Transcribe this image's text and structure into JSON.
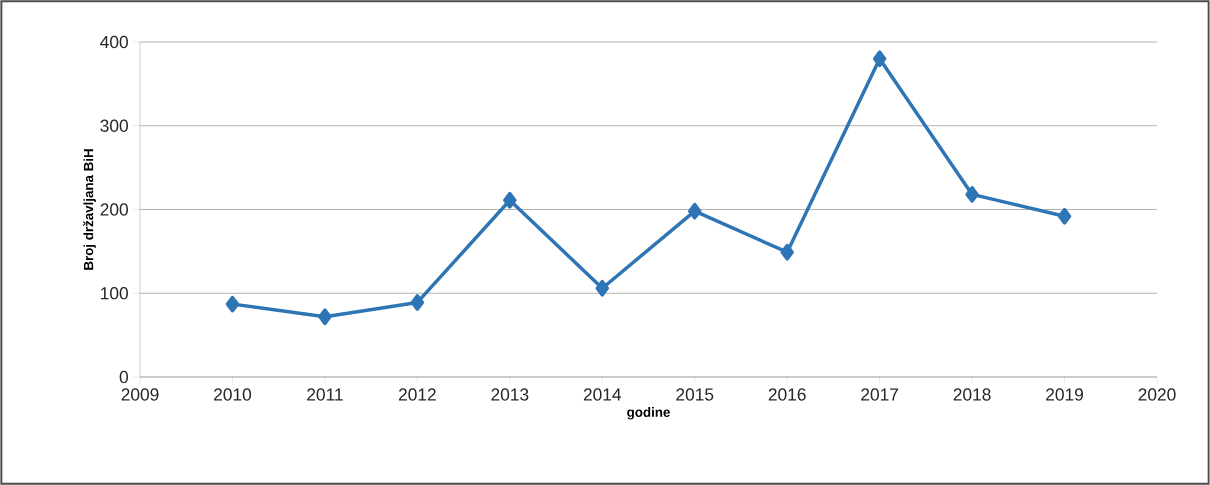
{
  "chart_data": {
    "type": "line",
    "xlabel": "godine",
    "ylabel": "Broj državljana BiH",
    "x": [
      2010,
      2011,
      2012,
      2013,
      2014,
      2015,
      2016,
      2017,
      2018,
      2019
    ],
    "series": [
      {
        "color": "#2e75b6",
        "values": [
          87,
          72,
          89,
          211,
          106,
          198,
          149,
          380,
          218,
          192
        ]
      }
    ],
    "xlim": [
      2009,
      2020
    ],
    "xticks": [
      2009,
      2010,
      2011,
      2012,
      2013,
      2014,
      2015,
      2016,
      2017,
      2018,
      2019,
      2020
    ],
    "ylim": [
      0,
      400
    ],
    "yticks": [
      0,
      100,
      200,
      300,
      400
    ],
    "grid": "y",
    "marker": "diamond",
    "line_style": "solid"
  }
}
